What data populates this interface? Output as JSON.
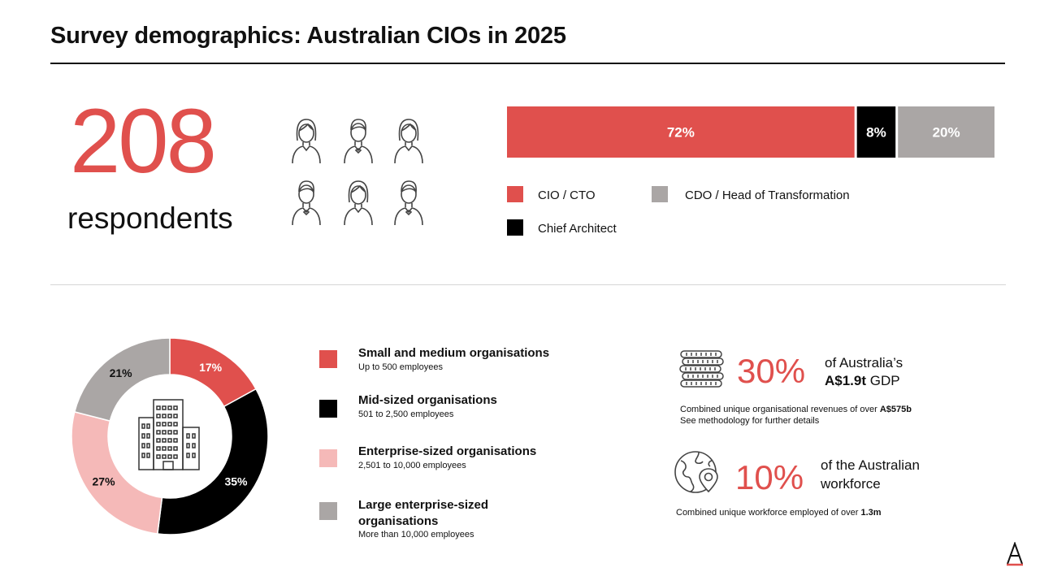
{
  "title": "Survey demographics: Australian CIOs in 2025",
  "respondents": {
    "count": "208",
    "label": "respondents"
  },
  "icons": {
    "people": [
      "person-female-icon",
      "person-male-icon",
      "person-female-icon",
      "person-male-icon",
      "person-female-icon",
      "person-male-icon"
    ],
    "coins": "coin-stack-icon",
    "globe": "globe-location-pin-icon",
    "logo": "brand-logo-a"
  },
  "roles_legend": [
    {
      "label": "CIO / CTO",
      "color": "#e0504d"
    },
    {
      "label": "CDO / Head of Transformation",
      "color": "#aaa6a5"
    },
    {
      "label": "Chief Architect",
      "color": "#000000"
    }
  ],
  "organisations": [
    {
      "title": "Small and medium organisations",
      "subtitle": "Up to 500 employees",
      "color": "#e0504d"
    },
    {
      "title": "Mid-sized organisations",
      "subtitle": "501 to 2,500 employees",
      "color": "#000000"
    },
    {
      "title": "Enterprise-sized organisations",
      "subtitle": "2,501 to 10,000 employees",
      "color": "#f5b9b8"
    },
    {
      "title": "Large enterprise-sized organisations",
      "subtitle": "More than 10,000 employees",
      "color": "#aaa6a5"
    }
  ],
  "gdp_stat": {
    "value": "30%",
    "line1": "of Australia’s",
    "line2_bold": "A$1.9t",
    "line2_rest": " GDP",
    "note1_prefix": "Combined unique organisational revenues of over ",
    "note1_bold": "A$575b",
    "note2": "See methodology for further details"
  },
  "workforce_stat": {
    "value": "10%",
    "line1": "of the Australian",
    "line2": "workforce",
    "note_prefix": "Combined unique workforce employed of over ",
    "note_bold": "1.3m"
  },
  "chart_data": [
    {
      "type": "bar",
      "orientation": "horizontal-stacked",
      "categories": [
        "Respondent roles"
      ],
      "series": [
        {
          "name": "CIO / CTO",
          "values": [
            72
          ],
          "label": "72%",
          "color": "#e0504d"
        },
        {
          "name": "Chief Architect",
          "values": [
            8
          ],
          "label": "8%",
          "color": "#000000"
        },
        {
          "name": "CDO / Head of Transformation",
          "values": [
            20
          ],
          "label": "20%",
          "color": "#aaa6a5"
        }
      ],
      "xlim": [
        0,
        100
      ],
      "grid": false,
      "legend": "bottom"
    },
    {
      "type": "pie",
      "variant": "donut",
      "categories": [
        "Small and medium organisations",
        "Mid-sized organisations",
        "Enterprise-sized organisations",
        "Large enterprise-sized organisations"
      ],
      "values": [
        17,
        35,
        27,
        21
      ],
      "labels": [
        "17%",
        "35%",
        "27%",
        "21%"
      ],
      "colors": [
        "#e0504d",
        "#000000",
        "#f5b9b8",
        "#aaa6a5"
      ],
      "center_icon": "office-building-icon",
      "legend": "right"
    }
  ]
}
